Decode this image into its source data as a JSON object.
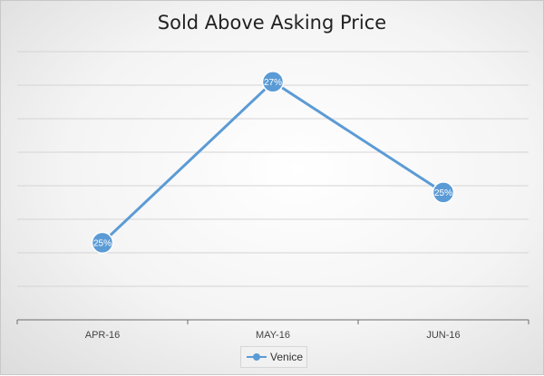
{
  "chart_data": {
    "type": "line",
    "title": "Sold Above Asking Price",
    "categories": [
      "APR-16",
      "MAY-16",
      "JUN-16"
    ],
    "series": [
      {
        "name": "Venice",
        "color": "#5b9bd5",
        "values": [
          24.65,
          27.05,
          25.4
        ],
        "labels": [
          "25%",
          "27%",
          "25%"
        ]
      }
    ],
    "ylim": [
      23.5,
      27.5
    ],
    "grid": true,
    "legend_position": "bottom"
  }
}
